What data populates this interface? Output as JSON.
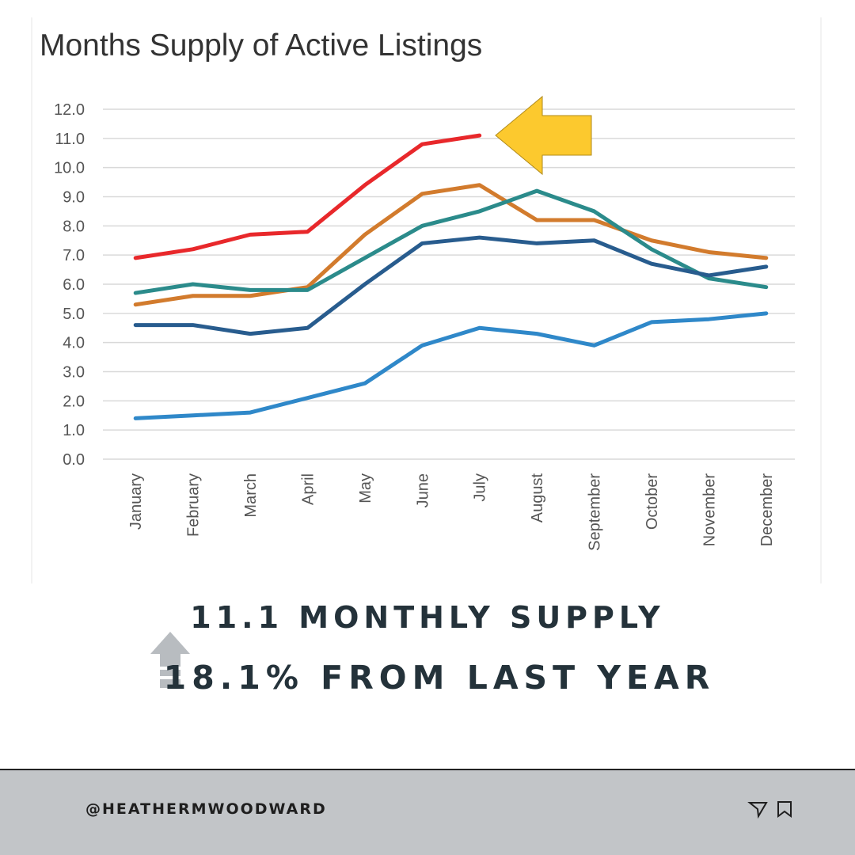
{
  "chart_data": {
    "type": "line",
    "title": "Months Supply of Active Listings",
    "categories": [
      "January",
      "February",
      "March",
      "April",
      "May",
      "June",
      "July",
      "August",
      "September",
      "October",
      "November",
      "December"
    ],
    "series": [
      {
        "color": "#e8282b",
        "values": [
          6.9,
          7.2,
          7.7,
          7.8,
          9.4,
          10.8,
          11.1,
          null,
          null,
          null,
          null,
          null
        ]
      },
      {
        "color": "#d27b2d",
        "values": [
          5.3,
          5.6,
          5.6,
          5.9,
          7.7,
          9.1,
          9.4,
          8.2,
          8.2,
          7.5,
          7.1,
          6.9
        ]
      },
      {
        "color": "#2b8b8b",
        "values": [
          5.7,
          6.0,
          5.8,
          5.8,
          6.9,
          8.0,
          8.5,
          9.2,
          8.5,
          7.2,
          6.2,
          5.9
        ]
      },
      {
        "color": "#285c8e",
        "values": [
          4.6,
          4.6,
          4.3,
          4.5,
          6.0,
          7.4,
          7.6,
          7.4,
          7.5,
          6.7,
          6.3,
          6.6
        ]
      },
      {
        "color": "#2f88c9",
        "values": [
          1.4,
          1.5,
          1.6,
          2.1,
          2.6,
          3.9,
          4.5,
          4.3,
          3.9,
          4.7,
          4.8,
          5.0
        ]
      }
    ],
    "ylim": [
      0,
      12
    ],
    "yticks": [
      {
        "value": 0,
        "label": "0.0"
      },
      {
        "value": 1,
        "label": "1.0"
      },
      {
        "value": 2,
        "label": "2.0"
      },
      {
        "value": 3,
        "label": "3.0"
      },
      {
        "value": 4,
        "label": "4.0"
      },
      {
        "value": 5,
        "label": "5.0"
      },
      {
        "value": 6,
        "label": "6.0"
      },
      {
        "value": 7,
        "label": "7.0"
      },
      {
        "value": 8,
        "label": "8.0"
      },
      {
        "value": 9,
        "label": "9.0"
      },
      {
        "value": 10,
        "label": "10.0"
      },
      {
        "value": 11,
        "label": "11.0"
      },
      {
        "value": 12,
        "label": "12.0"
      }
    ],
    "grid": true
  },
  "caption": {
    "headline": "11.1 MONTHLY SUPPLY",
    "change": "18.1% FROM LAST YEAR"
  },
  "footer": {
    "handle": "@HEATHERMWOODWARD"
  }
}
